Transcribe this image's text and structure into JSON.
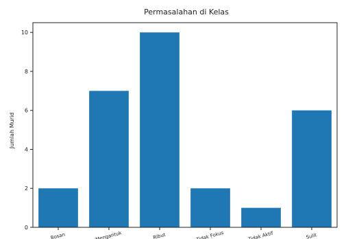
{
  "chart_data": {
    "type": "bar",
    "title": "Permasalahan di Kelas",
    "ylabel": "Jumlah Murid",
    "xlabel": "",
    "categories": [
      "Bosan",
      "Mengantuk",
      "Ribut",
      "Tidak Fokus",
      "Tidak Aktif",
      "Sulit"
    ],
    "values": [
      2,
      7,
      10,
      2,
      1,
      6
    ],
    "ylim": [
      0,
      10.5
    ],
    "yticks": [
      0,
      2,
      4,
      6,
      8,
      10
    ],
    "bar_color": "#1f77b4",
    "grid": false,
    "legend": "none"
  }
}
